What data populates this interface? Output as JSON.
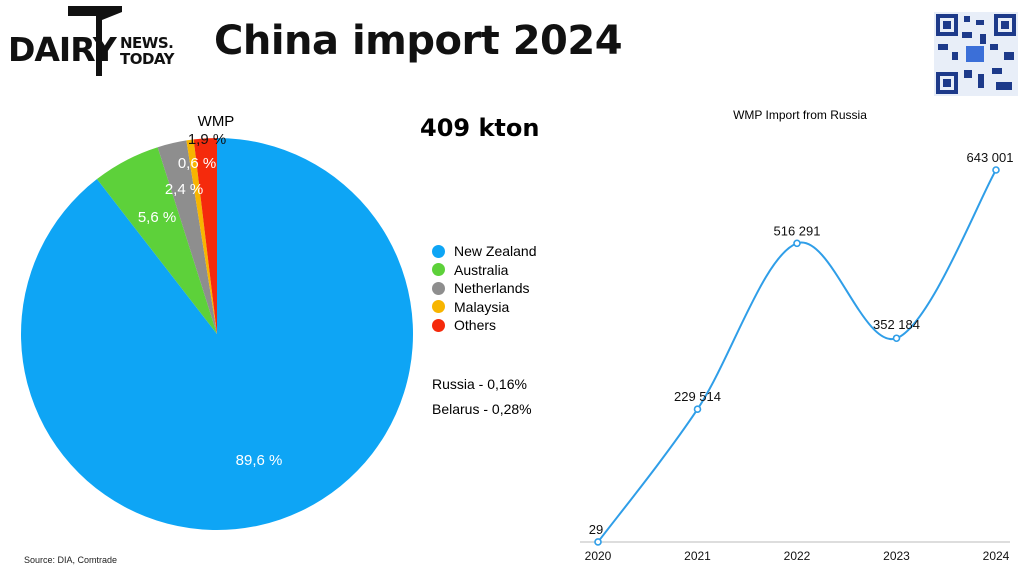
{
  "logo": {
    "word_main": "DAIRY",
    "word_top": "NEWS.",
    "word_bottom": "TODAY"
  },
  "title": "China import 2024",
  "qr_icon": "qr-code-icon",
  "total": "409 kton",
  "source": "Source: DIA, Comtrade",
  "colors": {
    "new_zealand": "#0ea5f5",
    "australia": "#5dd13a",
    "netherlands": "#8e8e8e",
    "malaysia": "#f7b500",
    "others": "#f52a0c",
    "line": "#2f9ee8"
  },
  "notes": {
    "russia": "Russia - 0,16%",
    "belarus": "Belarus - 0,28%"
  },
  "chart_data": [
    {
      "type": "pie",
      "title": "WMP",
      "slices": [
        {
          "label": "New Zealand",
          "value": 89.6,
          "text": "89,6 %",
          "color": "#0ea5f5"
        },
        {
          "label": "Australia",
          "value": 5.6,
          "text": "5,6 %",
          "color": "#5dd13a"
        },
        {
          "label": "Netherlands",
          "value": 2.4,
          "text": "2,4 %",
          "color": "#8e8e8e"
        },
        {
          "label": "Malaysia",
          "value": 0.6,
          "text": "0,6 %",
          "color": "#f7b500"
        },
        {
          "label": "Others",
          "value": 1.9,
          "text": "1,9 %",
          "color": "#f52a0c"
        }
      ],
      "legend": [
        "New Zealand",
        "Australia",
        "Netherlands",
        "Malaysia",
        "Others"
      ],
      "legend_position": "right"
    },
    {
      "type": "line",
      "title": "WMP Import from Russia",
      "x": [
        "2020",
        "2021",
        "2022",
        "2023",
        "2024"
      ],
      "y": [
        29,
        229514,
        516291,
        352184,
        643001
      ],
      "data_labels": [
        "29",
        "229 514",
        "516 291",
        "352 184",
        "643 001"
      ],
      "ylim": [
        0,
        643001
      ],
      "grid": false,
      "smooth": true
    }
  ]
}
